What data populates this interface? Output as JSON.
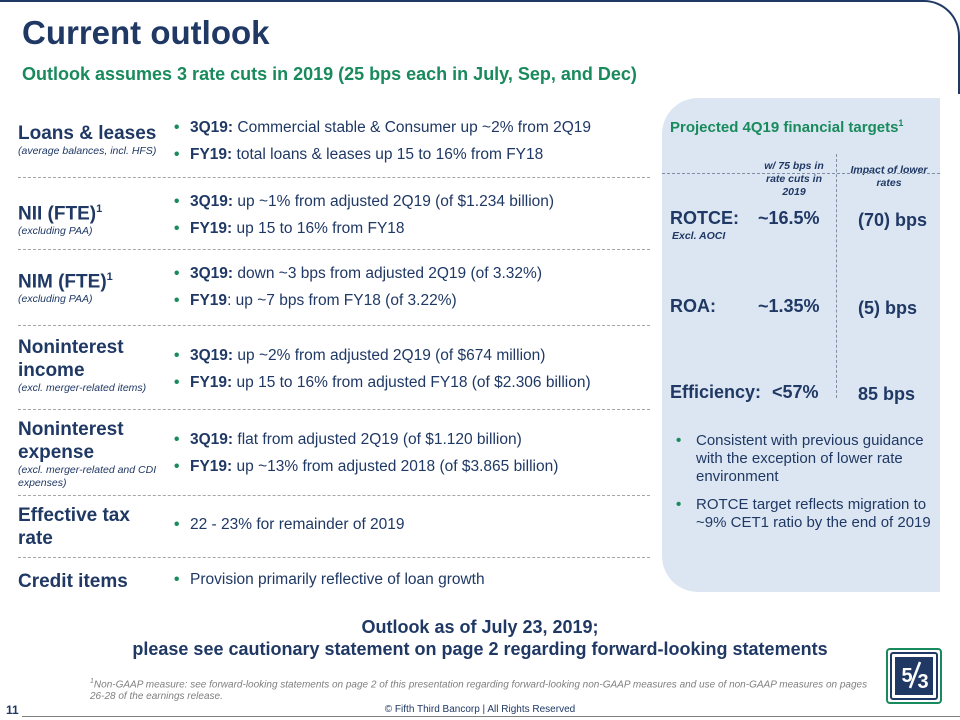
{
  "header": {
    "title": "Current outlook",
    "subtitle": "Outlook assumes 3 rate cuts in 2019 (25 bps each in July, Sep, and Dec)"
  },
  "rows": [
    {
      "label": "Loans & leases",
      "label_sup": "",
      "sub": "(average balances, incl. HFS)",
      "bullets": [
        {
          "lead": "3Q19:",
          "text": " Commercial stable & Consumer up ~2% from 2Q19"
        },
        {
          "lead": "FY19:",
          "text": " total loans & leases up 15 to 16% from FY18"
        }
      ]
    },
    {
      "label": "NII (FTE)",
      "label_sup": "1",
      "sub": "(excluding PAA)",
      "bullets": [
        {
          "lead": "3Q19:",
          "text": " up ~1% from adjusted 2Q19 (of $1.234 billion)"
        },
        {
          "lead": "FY19:",
          "text": " up 15 to 16% from FY18"
        }
      ]
    },
    {
      "label": "NIM (FTE)",
      "label_sup": "1",
      "sub": "(excluding PAA)",
      "bullets": [
        {
          "lead": "3Q19:",
          "text": " down ~3 bps from adjusted 2Q19 (of 3.32%)"
        },
        {
          "lead": "FY19",
          "text": ": up ~7 bps from FY18 (of 3.22%)"
        }
      ]
    },
    {
      "label": "Noninterest income",
      "label_sup": "",
      "sub": "(excl. merger-related items)",
      "bullets": [
        {
          "lead": "3Q19:",
          "text": " up ~2% from adjusted 2Q19 (of $674 million)"
        },
        {
          "lead": "FY19:",
          "text": " up 15 to 16% from adjusted FY18 (of $2.306 billion)"
        }
      ]
    },
    {
      "label": "Noninterest expense",
      "label_sup": "",
      "sub": "(excl. merger-related and CDI expenses)",
      "bullets": [
        {
          "lead": "3Q19:",
          "text": " flat from adjusted 2Q19 (of $1.120 billion)"
        },
        {
          "lead": "FY19:",
          "text": " up ~13% from adjusted 2018 (of $3.865 billion)"
        }
      ]
    },
    {
      "label": "Effective tax rate",
      "label_sup": "",
      "sub": "",
      "bullets": [
        {
          "lead": "",
          "text": "22 - 23% for remainder of 2019"
        }
      ]
    },
    {
      "label": "Credit items",
      "label_sup": "",
      "sub": "",
      "bullets": [
        {
          "lead": "",
          "text": "Provision primarily reflective of loan growth"
        }
      ]
    }
  ],
  "panel": {
    "title": "Projected 4Q19 financial targets",
    "title_sup": "1",
    "col1_head": "w/ 75 bps in rate cuts in 2019",
    "col2_head": "Impact of lower rates",
    "metrics": [
      {
        "name": "ROTCE:",
        "sub": "Excl. AOCI",
        "value": "~16.5%",
        "impact": "(70) bps"
      },
      {
        "name": "ROA:",
        "sub": "",
        "value": "~1.35%",
        "impact": "(5) bps"
      },
      {
        "name": "Efficiency:",
        "sub": "",
        "value": "<57%",
        "impact": "85 bps"
      }
    ],
    "notes": [
      "Consistent with previous guidance with the exception of lower rate environment",
      "ROTCE target reflects migration to ~9% CET1 ratio by the end of 2019"
    ]
  },
  "outlook": {
    "line1": "Outlook as of July 23, 2019;",
    "line2": "please see cautionary statement on page 2 regarding forward-looking statements"
  },
  "footer": {
    "footnote_sup": "1",
    "footnote": "Non-GAAP measure: see forward-looking statements on page 2 of this presentation regarding forward-looking non-GAAP measures and use of non-GAAP measures on pages 26-28 of the earnings release.",
    "page_number": "11",
    "copyright": "© Fifth Third Bancorp | All Rights Reserved",
    "logo_icon": "fifth-third-logo-icon"
  },
  "colors": {
    "navy": "#1f3864",
    "green": "#188a5c",
    "panel_bg": "#dce6f2"
  }
}
